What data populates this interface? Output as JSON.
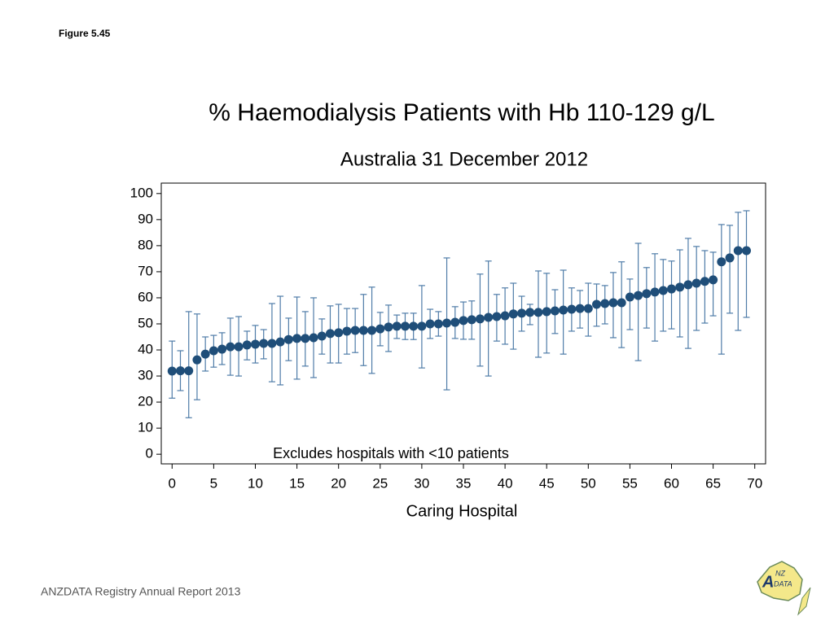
{
  "figure_label": "Figure 5.45",
  "footer": "ANZDATA Registry Annual Report 2013",
  "logo": {
    "parts": [
      "A",
      "NZ",
      "DATA"
    ]
  },
  "chart_data": {
    "type": "errorbar",
    "title": "% Haemodialysis Patients with Hb 110-129 g/L",
    "subtitle": "Australia 31 December 2012",
    "x_label": "Caring Hospital",
    "annotation": "Excludes hospitals with <10 patients",
    "point_color": "#1f4e79",
    "bar_color": "#4f7ca8",
    "xlim": [
      -1.3,
      71.3
    ],
    "ylim": [
      -3.7,
      104
    ],
    "xticks": [
      0,
      5,
      10,
      15,
      20,
      25,
      30,
      35,
      40,
      45,
      50,
      55,
      60,
      65,
      70
    ],
    "yticks": [
      0,
      10,
      20,
      30,
      40,
      50,
      60,
      70,
      80,
      90,
      100
    ],
    "x": [
      0,
      1,
      2,
      3,
      4,
      5,
      6,
      7,
      8,
      9,
      10,
      11,
      12,
      13,
      14,
      15,
      16,
      17,
      18,
      19,
      20,
      21,
      22,
      23,
      24,
      25,
      26,
      27,
      28,
      29,
      30,
      31,
      32,
      33,
      34,
      35,
      36,
      37,
      38,
      39,
      40,
      41,
      42,
      43,
      44,
      45,
      46,
      47,
      48,
      49,
      50,
      51,
      52,
      53,
      54,
      55,
      56,
      57,
      58,
      59,
      60,
      61,
      62,
      63,
      64,
      65,
      66,
      67,
      68,
      69
    ],
    "values": [
      31.9,
      32,
      32,
      36.2,
      38.4,
      39.7,
      40.3,
      41.2,
      41.2,
      41.9,
      42.2,
      42.5,
      42.5,
      43.1,
      44,
      44.4,
      44.4,
      44.7,
      45.3,
      46.3,
      46.6,
      47.2,
      47.5,
      47.5,
      47.5,
      48.1,
      48.8,
      49.1,
      49.1,
      49.1,
      49.1,
      50,
      50,
      50.3,
      50.6,
      51.3,
      51.6,
      51.9,
      52.5,
      52.8,
      53.1,
      53.8,
      54.1,
      54.4,
      54.4,
      54.7,
      55,
      55.3,
      55.6,
      55.9,
      55.9,
      57.5,
      57.8,
      58.1,
      58.1,
      60.3,
      60.9,
      61.6,
      62.2,
      62.8,
      63.4,
      64.1,
      65,
      65.6,
      66.3,
      66.9,
      73.8,
      75.3,
      78.1,
      78.1
    ],
    "upper": [
      43.4,
      39.7,
      54.7,
      53.8,
      45,
      45.6,
      46.6,
      52.2,
      52.8,
      47.2,
      49.4,
      47.8,
      57.8,
      60.6,
      52.2,
      60.3,
      54.7,
      60,
      51.9,
      56.9,
      57.5,
      55.9,
      55.9,
      61.3,
      64.1,
      54.4,
      57.2,
      53.4,
      54.1,
      54.1,
      64.7,
      55.6,
      54.7,
      75.3,
      56.6,
      58.4,
      58.8,
      69.1,
      74.1,
      61.3,
      63.8,
      65.6,
      60.6,
      57.5,
      70.3,
      69.4,
      63.1,
      70.6,
      63.8,
      62.8,
      65.6,
      65.3,
      64.7,
      69.7,
      73.8,
      67.2,
      80.9,
      71.6,
      76.9,
      74.7,
      74.1,
      78.4,
      82.8,
      79.7,
      78.1,
      77.5,
      88.1,
      87.8,
      92.8,
      93.4
    ],
    "lower": [
      21.5,
      24.4,
      14,
      20.9,
      31.9,
      33.4,
      34.4,
      30.3,
      30,
      36.2,
      35,
      36.6,
      27.8,
      26.6,
      35.9,
      28.8,
      33.8,
      29.4,
      38.4,
      35,
      35,
      38.4,
      39,
      34,
      31,
      41.6,
      39.4,
      44.4,
      44,
      44,
      33.1,
      44.4,
      45.3,
      24.7,
      44.4,
      44.1,
      44.1,
      33.8,
      30,
      43.4,
      42.2,
      40.3,
      47.2,
      49.7,
      37.2,
      38.8,
      46.3,
      38.4,
      47.2,
      48.4,
      45.3,
      49.1,
      50,
      44.7,
      40.9,
      47.8,
      35.9,
      48.4,
      43.4,
      47.2,
      48.1,
      45,
      40.6,
      47.5,
      50.3,
      53.1,
      38.4,
      54.1,
      47.5,
      52.5
    ]
  }
}
